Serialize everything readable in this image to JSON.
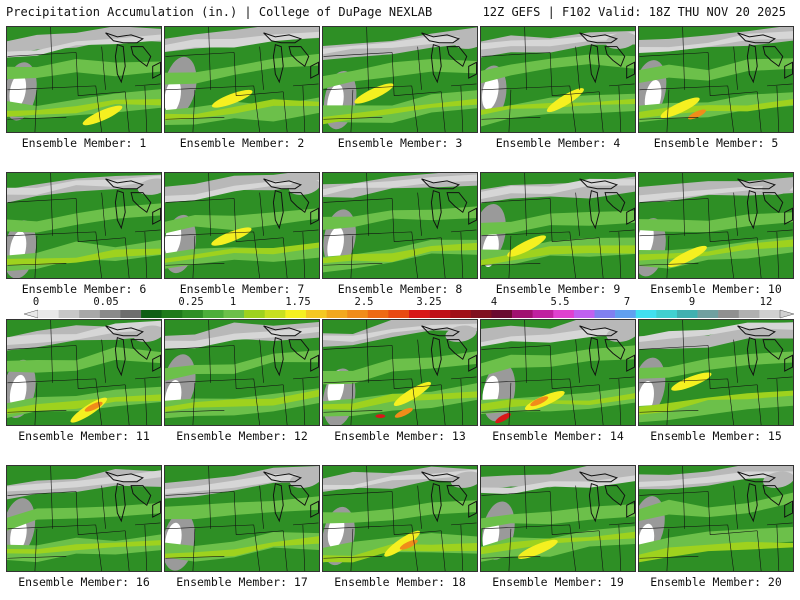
{
  "header": {
    "title": "Precipitation Accumulation (in.) | College of DuPage NEXLAB",
    "run_info": "12Z GEFS | F102 Valid: 18Z THU NOV 20 2025"
  },
  "colors": {
    "zero": "#ffffff",
    "greys": [
      "#d6d6d6",
      "#b8b8b8",
      "#9a9a9a"
    ],
    "greens": [
      "#6cc04a",
      "#4cae3a",
      "#2e8f25",
      "#1d7a1a"
    ],
    "yellow_green": "#9ed21e",
    "yellow": "#f5f020",
    "orange_yellow": "#f4c823",
    "orange": "#f08c1a",
    "red": "#d81818",
    "dark_red": "#a01018",
    "map_lines": "#111111"
  },
  "colorbar": {
    "labels": [
      "0",
      "0.05",
      "0.25",
      "1",
      "1.75",
      "2.5",
      "3.25",
      "4",
      "5.5",
      "7",
      "9",
      "12"
    ],
    "colors": [
      "#e8e8e8",
      "#c8c8c8",
      "#a8a8a8",
      "#8a8a8a",
      "#6e6e6e",
      "#0f5f15",
      "#1e7a1a",
      "#2e8f25",
      "#4cae3a",
      "#6cc04a",
      "#9ed21e",
      "#c8e020",
      "#f5f020",
      "#f4c823",
      "#f2a81e",
      "#f08c1a",
      "#ee6a14",
      "#e84a12",
      "#d81818",
      "#c01018",
      "#a01018",
      "#801020",
      "#6a0a30",
      "#a01070",
      "#c020a0",
      "#e040d0",
      "#c060f0",
      "#8080f0",
      "#60a0f0",
      "#40e0f0",
      "#40d0d0",
      "#40b0b0",
      "#70a0a0",
      "#909090",
      "#b0b0b0",
      "#d0d0d0"
    ]
  },
  "members": [
    {
      "label": "Ensemble Member: 1"
    },
    {
      "label": "Ensemble Member: 2"
    },
    {
      "label": "Ensemble Member: 3"
    },
    {
      "label": "Ensemble Member: 4"
    },
    {
      "label": "Ensemble Member: 5"
    },
    {
      "label": "Ensemble Member: 6"
    },
    {
      "label": "Ensemble Member: 7"
    },
    {
      "label": "Ensemble Member: 8"
    },
    {
      "label": "Ensemble Member: 9"
    },
    {
      "label": "Ensemble Member: 10"
    },
    {
      "label": "Ensemble Member: 11"
    },
    {
      "label": "Ensemble Member: 12"
    },
    {
      "label": "Ensemble Member: 13"
    },
    {
      "label": "Ensemble Member: 14"
    },
    {
      "label": "Ensemble Member: 15"
    },
    {
      "label": "Ensemble Member: 16"
    },
    {
      "label": "Ensemble Member: 17"
    },
    {
      "label": "Ensemble Member: 18"
    },
    {
      "label": "Ensemble Member: 19"
    },
    {
      "label": "Ensemble Member: 20"
    }
  ]
}
